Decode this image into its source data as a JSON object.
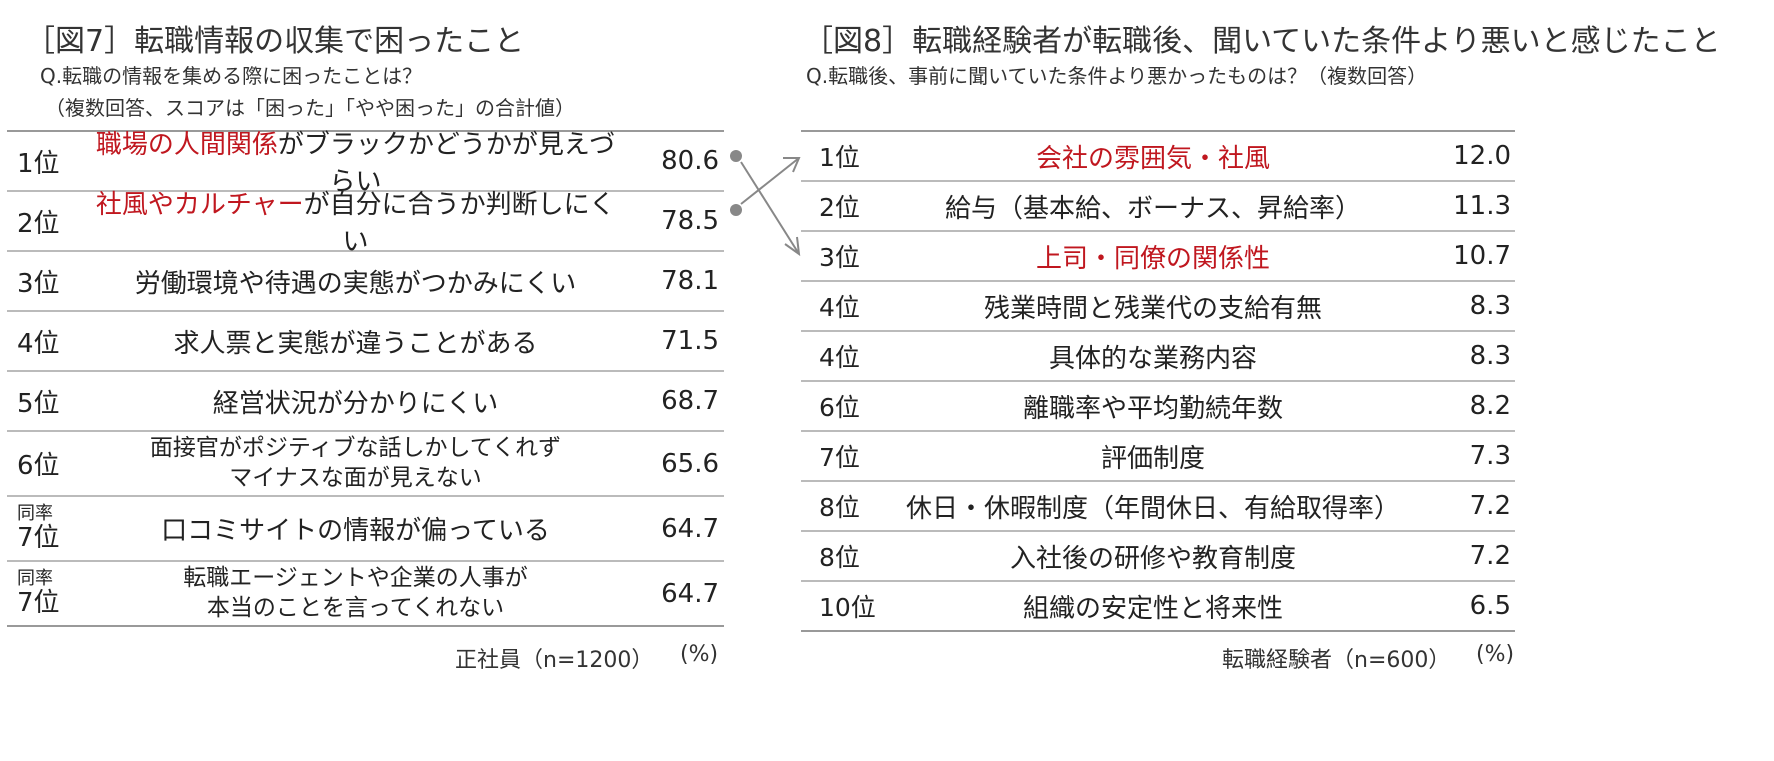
{
  "left": {
    "title": "［図7］転職情報の収集で困ったこと",
    "question": "Q.転職の情報を集める際に困ったことは？",
    "note": "（複数回答、スコアは「困った」「やや困った」の合計値）",
    "rows": [
      {
        "rank": "1位",
        "tie": "",
        "hl": "職場の人間関係",
        "text": "がブラックかどうかが見えづらい",
        "line2": "",
        "value": "80.6"
      },
      {
        "rank": "2位",
        "tie": "",
        "hl": "社風やカルチャー",
        "text": "が自分に合うか判断しにくい",
        "line2": "",
        "value": "78.5"
      },
      {
        "rank": "3位",
        "tie": "",
        "hl": "",
        "text": "労働環境や待遇の実態がつかみにくい",
        "line2": "",
        "value": "78.1"
      },
      {
        "rank": "4位",
        "tie": "",
        "hl": "",
        "text": "求人票と実態が違うことがある",
        "line2": "",
        "value": "71.5"
      },
      {
        "rank": "5位",
        "tie": "",
        "hl": "",
        "text": "経営状況が分かりにくい",
        "line2": "",
        "value": "68.7"
      },
      {
        "rank": "6位",
        "tie": "",
        "hl": "",
        "text": "面接官がポジティブな話しかしてくれず",
        "line2": "マイナスな面が見えない",
        "value": "65.6"
      },
      {
        "rank": "7位",
        "tie": "同率",
        "hl": "",
        "text": "口コミサイトの情報が偏っている",
        "line2": "",
        "value": "64.7"
      },
      {
        "rank": "7位",
        "tie": "同率",
        "hl": "",
        "text": "転職エージェントや企業の人事が",
        "line2": "本当のことを言ってくれない",
        "value": "64.7"
      }
    ],
    "footer_sample": "正社員（n=1200）",
    "footer_unit": "(%)"
  },
  "right": {
    "title": "［図8］転職経験者が転職後、聞いていた条件より悪いと感じたこと",
    "question": "Q.転職後、事前に聞いていた条件より悪かったものは？（複数回答）",
    "rows": [
      {
        "rank": "1位",
        "text": "会社の雰囲気・社風",
        "highlight": true,
        "value": "12.0"
      },
      {
        "rank": "2位",
        "text": "給与（基本給、ボーナス、昇給率）",
        "highlight": false,
        "value": "11.3"
      },
      {
        "rank": "3位",
        "text": "上司・同僚の関係性",
        "highlight": true,
        "value": "10.7"
      },
      {
        "rank": "4位",
        "text": "残業時間と残業代の支給有無",
        "highlight": false,
        "value": "8.3"
      },
      {
        "rank": "4位",
        "text": "具体的な業務内容",
        "highlight": false,
        "value": "8.3"
      },
      {
        "rank": "6位",
        "text": "離職率や平均勤続年数",
        "highlight": false,
        "value": "8.2"
      },
      {
        "rank": "7位",
        "text": "評価制度",
        "highlight": false,
        "value": "7.3"
      },
      {
        "rank": "8位",
        "text": "休日・休暇制度（年間休日、有給取得率）",
        "highlight": false,
        "value": "7.2"
      },
      {
        "rank": "8位",
        "text": "入社後の研修や教育制度",
        "highlight": false,
        "value": "7.2"
      },
      {
        "rank": "10位",
        "text": "組織の安定性と将来性",
        "highlight": false,
        "value": "6.5"
      }
    ],
    "footer_sample": "転職経験者（n=600）",
    "footer_unit": "(%)"
  },
  "colors": {
    "highlight": "#c0171f",
    "connector": "#888888"
  }
}
